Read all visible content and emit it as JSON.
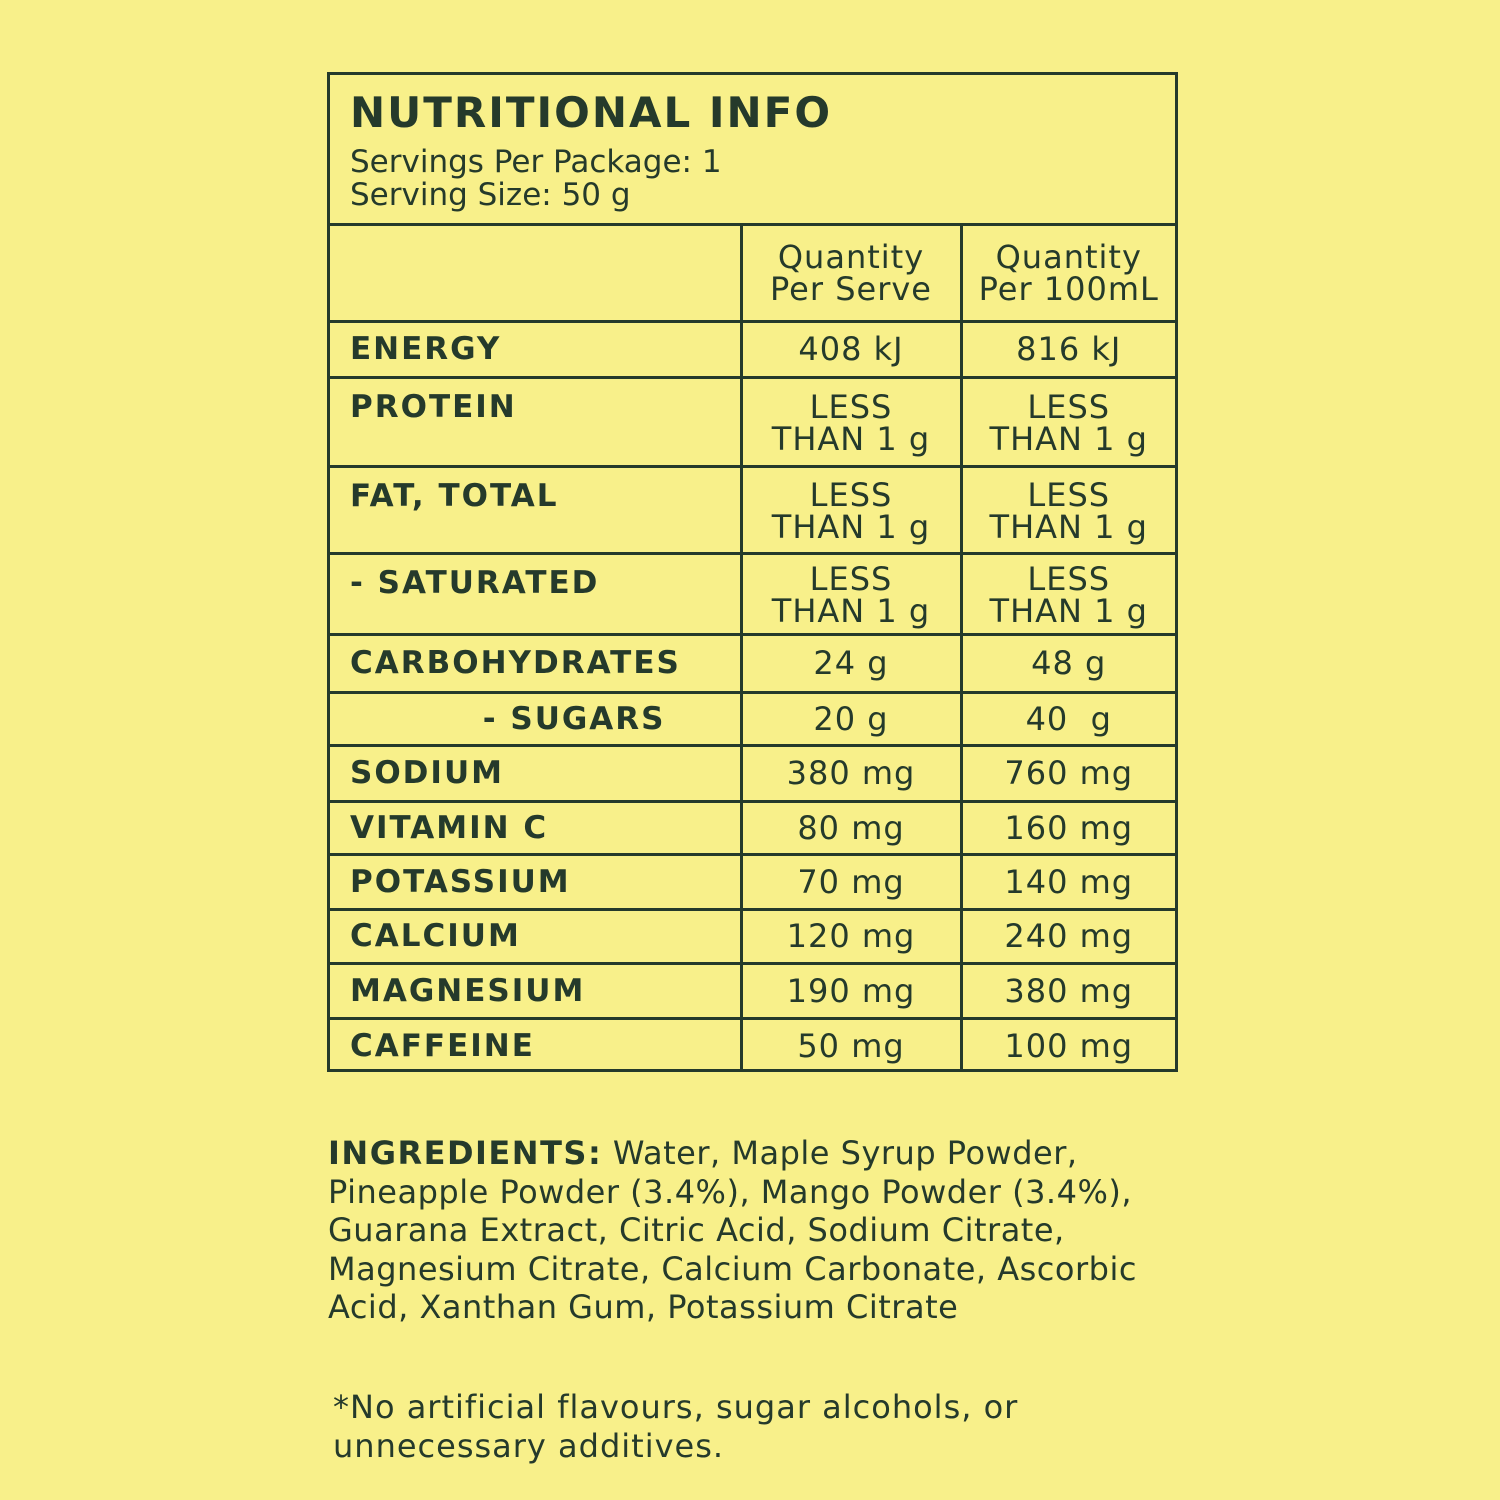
{
  "panel": {
    "title": "NUTRITIONAL INFO",
    "servings_per_package": "Servings Per Package: 1",
    "serving_size": "Serving Size: 50 g"
  },
  "table": {
    "headers": {
      "per_serve": [
        "Quantity",
        "Per Serve"
      ],
      "per_100ml": [
        "Quantity",
        "Per 100mL"
      ]
    },
    "rows": [
      {
        "name": "ENERGY",
        "per_serve": [
          "408 kJ"
        ],
        "per_100ml": [
          "816 kJ"
        ]
      },
      {
        "name": "PROTEIN",
        "per_serve": [
          "LESS",
          "THAN 1 g"
        ],
        "per_100ml": [
          "LESS",
          "THAN 1 g"
        ]
      },
      {
        "name": "FAT, TOTAL",
        "per_serve": [
          "LESS",
          "THAN 1 g"
        ],
        "per_100ml": [
          "LESS",
          "THAN 1 g"
        ]
      },
      {
        "name": "- SATURATED",
        "per_serve": [
          "LESS",
          "THAN 1 g"
        ],
        "per_100ml": [
          "LESS",
          "THAN 1 g"
        ]
      },
      {
        "name": "CARBOHYDRATES",
        "per_serve": [
          "24 g"
        ],
        "per_100ml": [
          "48 g"
        ]
      },
      {
        "name": "- SUGARS",
        "per_serve": [
          "20 g"
        ],
        "per_100ml": [
          "40  g"
        ]
      },
      {
        "name": "SODIUM",
        "per_serve": [
          "380 mg"
        ],
        "per_100ml": [
          "760 mg"
        ]
      },
      {
        "name": "VITAMIN C",
        "per_serve": [
          "80 mg"
        ],
        "per_100ml": [
          "160 mg"
        ]
      },
      {
        "name": "POTASSIUM",
        "per_serve": [
          "70 mg"
        ],
        "per_100ml": [
          "140 mg"
        ]
      },
      {
        "name": "CALCIUM",
        "per_serve": [
          "120 mg"
        ],
        "per_100ml": [
          "240 mg"
        ]
      },
      {
        "name": "MAGNESIUM",
        "per_serve": [
          "190 mg"
        ],
        "per_100ml": [
          "380 mg"
        ]
      },
      {
        "name": "CAFFEINE",
        "per_serve": [
          "50 mg"
        ],
        "per_100ml": [
          "100 mg"
        ]
      }
    ]
  },
  "ingredients": {
    "label": "INGREDIENTS:",
    "text": " Water, Maple Syrup Powder, Pineapple Powder (3.4%), Mango Powder (3.4%), Guarana Extract, Citric Acid, Sodium Citrate, Magnesium Citrate, Calcium Carbonate, Ascorbic Acid, Xanthan Gum, Potassium Citrate"
  },
  "footnote": "*No artificial flavours, sugar alcohols, or unnecessary additives.",
  "colors": {
    "background": "#f8f08a",
    "ink": "#253a2b"
  }
}
